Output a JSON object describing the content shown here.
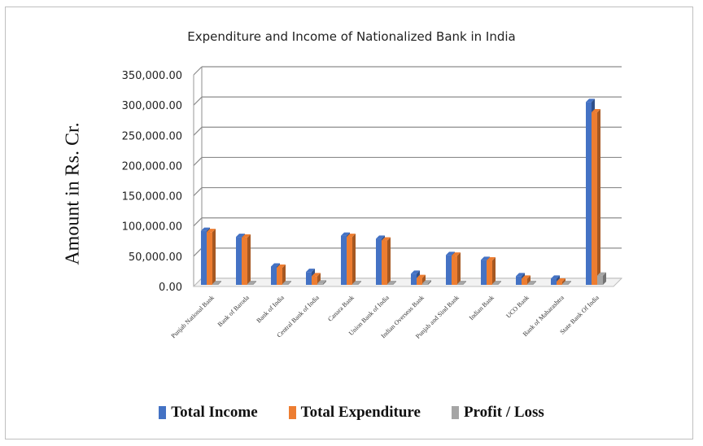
{
  "chart_data": {
    "type": "bar",
    "title": "Expenditure and Income of Nationalized Bank in India",
    "ylabel": "Amount in Rs. Cr.",
    "xlabel": "",
    "ylim": [
      0,
      350000
    ],
    "yticks": [
      "0.00",
      "50,000.00",
      "100,000.00",
      "150,000.00",
      "200,000.00",
      "250,000.00",
      "300,000.00",
      "350,000.00"
    ],
    "ytick_values": [
      0,
      50000,
      100000,
      150000,
      200000,
      250000,
      300000,
      350000
    ],
    "grid": true,
    "legend_position": "bottom",
    "categories": [
      "Punjab National Bank",
      "Bank of Baroda",
      "Bank of India",
      "Central Bank of India",
      "Canara Bank",
      "Union Bank of India",
      "Indian Overseas Bank",
      "Punjab and Sind Bank",
      "Indian Bank",
      "UCO Bank",
      "Bank of Maharashtra",
      "State Bank Of India"
    ],
    "series": [
      {
        "name": "Total Income",
        "color": "#4472c4",
        "values": [
          92000,
          82000,
          33000,
          24000,
          84000,
          79000,
          21000,
          52000,
          44000,
          17000,
          13000,
          305000
        ]
      },
      {
        "name": "Total Expenditure",
        "color": "#ed7d31",
        "values": [
          90000,
          81000,
          31000,
          17000,
          82000,
          76000,
          14000,
          51000,
          43000,
          13000,
          8000,
          288000
        ]
      },
      {
        "name": "Profit / Loss",
        "color": "#a5a5a5",
        "values": [
          1500,
          1000,
          1000,
          5000,
          1500,
          2000,
          5000,
          1000,
          1000,
          2000,
          3000,
          18000
        ]
      }
    ]
  }
}
